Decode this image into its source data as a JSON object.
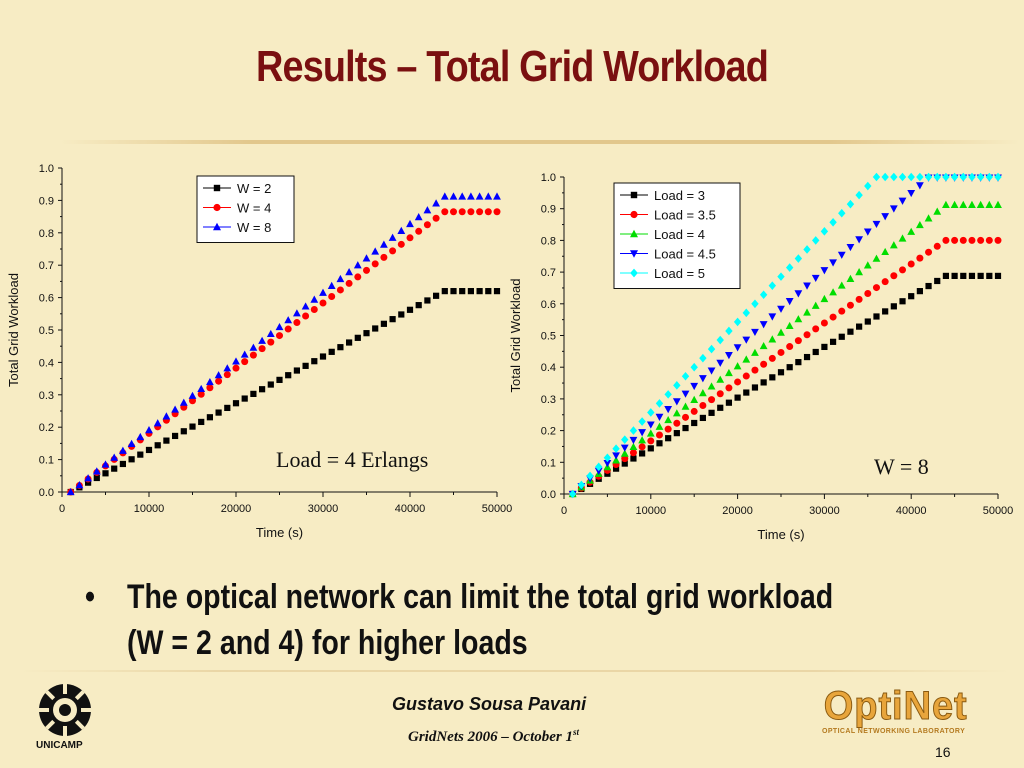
{
  "slide": {
    "title": "Results – Total Grid Workload",
    "bullet_marker": "•",
    "bullet_lines": [
      "The optical network can limit the total grid workload",
      "(W = 2 and 4) for higher loads"
    ],
    "author": "Gustavo Sousa Pavani",
    "conference": "GridNets 2006  – October 1",
    "conference_sup": "st",
    "page_number": "16",
    "left_logo_label": "UNICAMP",
    "right_logo_text": "OptiNet",
    "right_logo_subtitle": "OPTICAL NETWORKING LABORATORY"
  },
  "chart_data": [
    {
      "type": "scatter",
      "title": "",
      "xlabel": "Time (s)",
      "ylabel": "Total Grid Workload",
      "xlim": [
        0,
        50000
      ],
      "ylim": [
        0,
        1.0
      ],
      "xticks": [
        "0",
        "10000",
        "20000",
        "30000",
        "40000",
        "50000"
      ],
      "yticks": [
        "0.0",
        "0.1",
        "0.2",
        "0.3",
        "0.4",
        "0.5",
        "0.6",
        "0.7",
        "0.8",
        "0.9",
        "1.0"
      ],
      "annotation": "Load = 4 Erlangs",
      "legend_position": "top-center",
      "series": [
        {
          "name": "W = 2",
          "color": "#000000",
          "marker": "square",
          "plateau": 0.62,
          "reach_x": 44000
        },
        {
          "name": "W = 4",
          "color": "#ff0000",
          "marker": "circle",
          "plateau": 0.865,
          "reach_x": 44000
        },
        {
          "name": "W = 8",
          "color": "#0000ff",
          "marker": "triangle-up",
          "plateau": 0.912,
          "reach_x": 44000
        }
      ]
    },
    {
      "type": "scatter",
      "title": "",
      "xlabel": "Time (s)",
      "ylabel": "Total Grid Workload",
      "xlim": [
        0,
        50000
      ],
      "ylim": [
        0,
        1.0
      ],
      "xticks": [
        "0",
        "10000",
        "20000",
        "30000",
        "40000",
        "50000"
      ],
      "yticks": [
        "0.0",
        "0.1",
        "0.2",
        "0.3",
        "0.4",
        "0.5",
        "0.6",
        "0.7",
        "0.8",
        "0.9",
        "1.0"
      ],
      "annotation": "W = 8",
      "legend_position": "top-left",
      "series": [
        {
          "name": "Load = 3",
          "color": "#000000",
          "marker": "square",
          "plateau": 0.688,
          "reach_x": 44000
        },
        {
          "name": "Load = 3.5",
          "color": "#ff0000",
          "marker": "circle",
          "plateau": 0.8,
          "reach_x": 44000
        },
        {
          "name": "Load = 4",
          "color": "#00dd00",
          "marker": "triangle-up",
          "plateau": 0.912,
          "reach_x": 44000
        },
        {
          "name": "Load = 4.5",
          "color": "#0000ff",
          "marker": "triangle-down",
          "plateau": 0.998,
          "reach_x": 42000
        },
        {
          "name": "Load = 5",
          "color": "#00ffff",
          "marker": "diamond",
          "plateau": 1.0,
          "reach_x": 36000
        }
      ]
    }
  ]
}
